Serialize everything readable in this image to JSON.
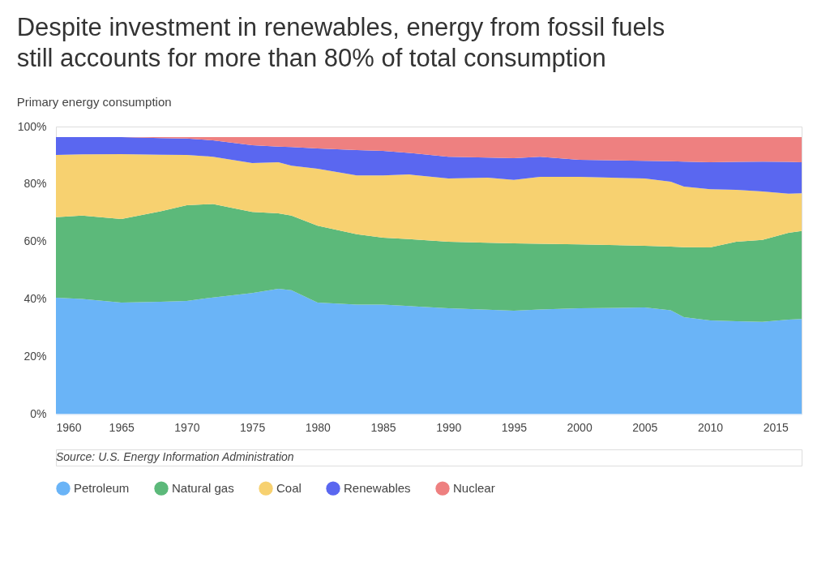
{
  "chart_data": {
    "type": "area",
    "title": "Despite investment in renewables, energy from fossil fuels still accounts for  more than 80% of total consumption",
    "subtitle": "Primary energy consumption",
    "annotations": [
      "Source:  U.S. Energy Information Administration"
    ],
    "stacked": true,
    "legend": "bottom",
    "grid": false,
    "x": [
      1960,
      1962,
      1965,
      1968,
      1970,
      1972,
      1975,
      1977,
      1978,
      1980,
      1983,
      1985,
      1987,
      1990,
      1993,
      1995,
      1997,
      2000,
      2005,
      2007,
      2008,
      2010,
      2012,
      2014,
      2016,
      2017
    ],
    "xlim": [
      1960,
      2017
    ],
    "xticks": [
      1960,
      1965,
      1970,
      1975,
      1980,
      1985,
      1990,
      1995,
      2000,
      2005,
      2010,
      2015
    ],
    "ylim": [
      0,
      100
    ],
    "yticks": [
      {
        "value": 0,
        "label": "0%"
      },
      {
        "value": 20,
        "label": "20%"
      },
      {
        "value": 40,
        "label": "40%"
      },
      {
        "value": 60,
        "label": "60%"
      },
      {
        "value": 80,
        "label": "80%"
      },
      {
        "value": 100,
        "label": "100%"
      }
    ],
    "series": [
      {
        "name": "Petroleum",
        "color": "#6ab4f7",
        "values": [
          40.4,
          40.0,
          38.7,
          39.0,
          39.3,
          40.5,
          42.0,
          43.5,
          43.0,
          38.7,
          38.0,
          38.0,
          37.5,
          36.7,
          36.2,
          35.9,
          36.3,
          36.7,
          37.0,
          36.0,
          33.6,
          32.5,
          32.2,
          32.0,
          32.8,
          33.0
        ]
      },
      {
        "name": "Natural gas",
        "color": "#5cb97a",
        "values": [
          28.0,
          29.0,
          29.1,
          31.5,
          33.3,
          32.5,
          28.3,
          26.3,
          26.0,
          26.8,
          24.5,
          23.3,
          23.3,
          23.2,
          23.3,
          23.4,
          22.9,
          22.3,
          21.5,
          22.2,
          24.4,
          25.4,
          27.7,
          28.5,
          30.2,
          30.6
        ]
      },
      {
        "name": "Coal",
        "color": "#f7d170",
        "values": [
          21.7,
          21.3,
          22.6,
          19.7,
          17.5,
          16.5,
          17.0,
          17.8,
          17.4,
          19.8,
          20.5,
          21.7,
          22.5,
          22.0,
          22.7,
          22.1,
          23.3,
          23.5,
          23.4,
          22.6,
          21.1,
          20.3,
          18.1,
          16.9,
          13.6,
          13.2
        ]
      },
      {
        "name": "Renewables",
        "color": "#5a67f0",
        "values": [
          6.2,
          6.0,
          5.9,
          5.8,
          5.7,
          5.7,
          6.2,
          5.4,
          6.5,
          7.1,
          8.8,
          8.5,
          7.5,
          7.6,
          7.0,
          7.6,
          7.0,
          5.9,
          6.2,
          7.1,
          8.7,
          9.4,
          9.7,
          10.4,
          11.1,
          10.8
        ]
      },
      {
        "name": "Nuclear",
        "color": "#ee8080",
        "values": [
          0.0,
          0.0,
          0.0,
          0.3,
          0.5,
          1.1,
          2.8,
          3.3,
          3.4,
          3.9,
          4.5,
          4.8,
          5.5,
          6.8,
          7.1,
          7.3,
          6.8,
          7.9,
          8.2,
          8.4,
          8.5,
          8.7,
          8.6,
          8.5,
          8.6,
          8.7
        ]
      }
    ]
  }
}
